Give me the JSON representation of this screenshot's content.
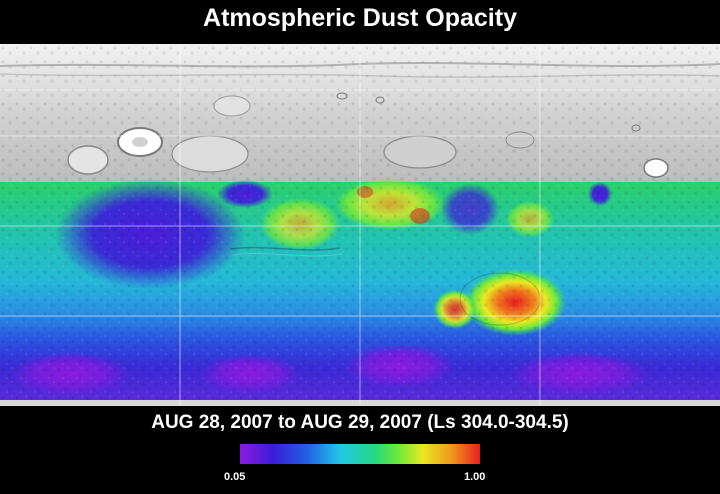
{
  "header": {
    "title": "Atmospheric Dust Opacity"
  },
  "map": {
    "lat_grid_lines": 5,
    "lon_grid_lines": 3,
    "hotspot_levels": [
      {
        "name": "north-low",
        "level": 0.1
      },
      {
        "name": "mid-band",
        "level": 0.5
      },
      {
        "name": "east-peak",
        "level": 1.0
      }
    ]
  },
  "footer": {
    "date_range": "AUG 28, 2007 to AUG 29, 2007 (Ls 304.0-304.5)"
  },
  "colorbar": {
    "min_label": "0.05",
    "max_label": "1.00",
    "colors": [
      "#8a1be0",
      "#3a1dd8",
      "#2260e6",
      "#22c8e8",
      "#22d880",
      "#6ee83a",
      "#e8e822",
      "#f09a1e",
      "#e81e1e"
    ]
  }
}
